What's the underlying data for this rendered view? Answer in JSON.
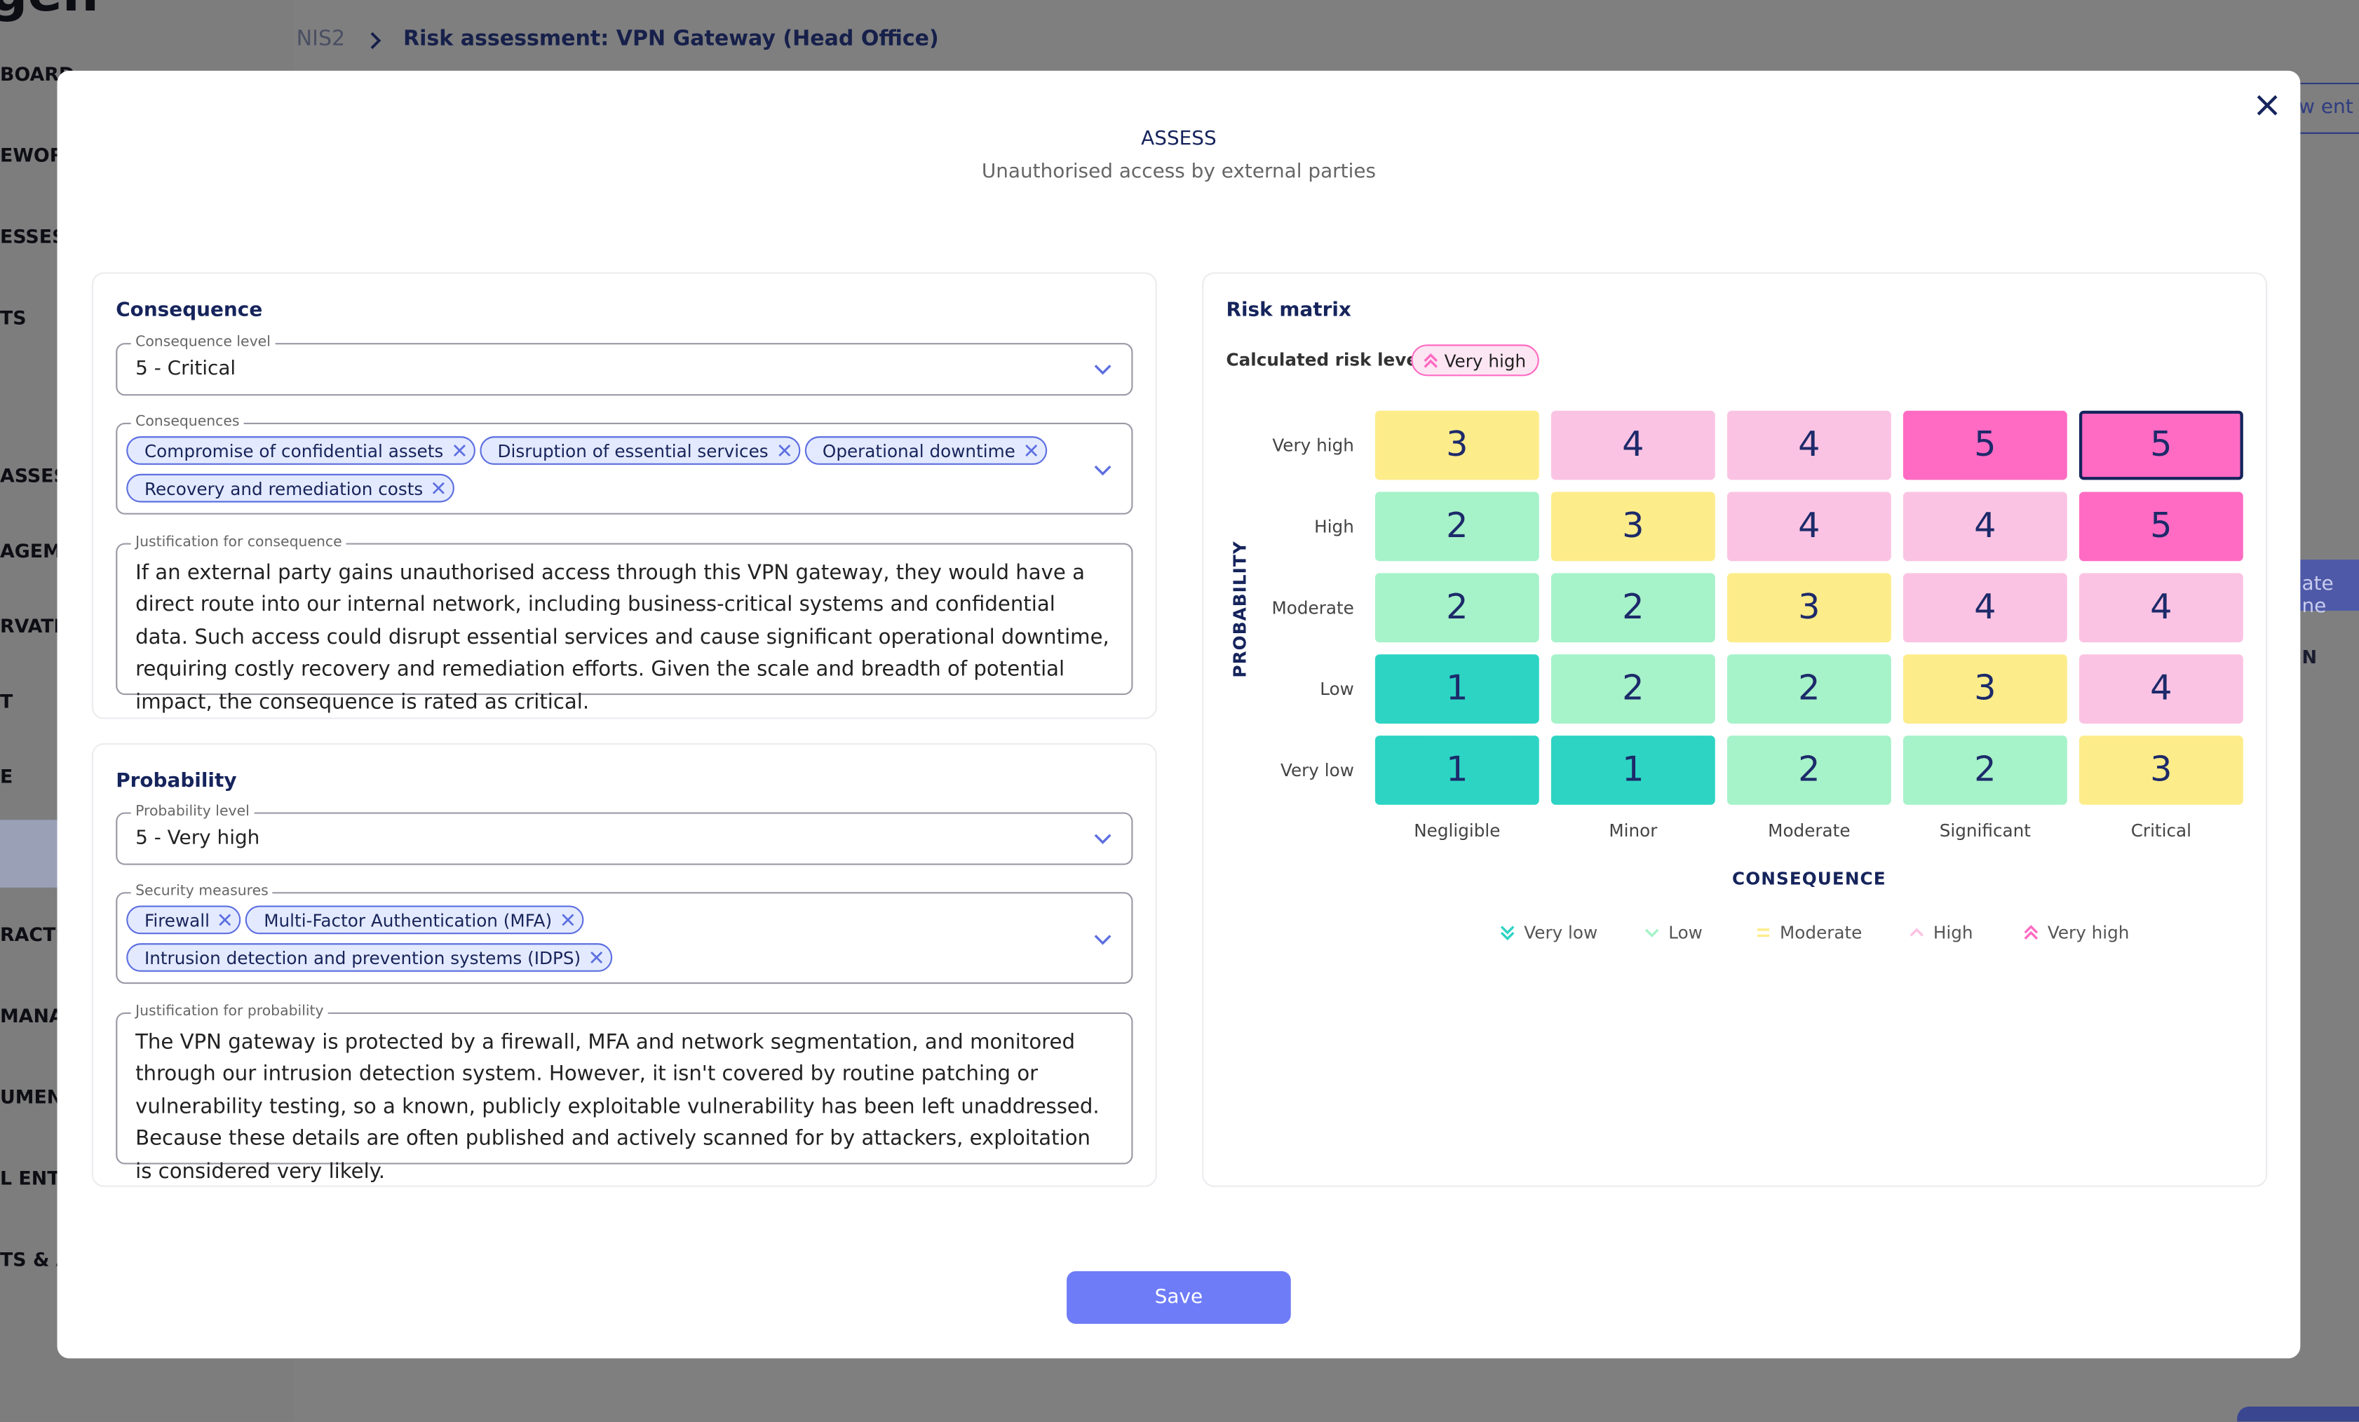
{
  "logo": "gen",
  "sidebar": {
    "items": [
      "BOARD",
      "EWOR",
      "ESSES",
      "TS",
      "ASSESS",
      "AGEME",
      "RVATI",
      "T",
      "E",
      "RACTS",
      "MANA",
      "UMENT",
      "L ENTI",
      "TS & A"
    ]
  },
  "breadcrumb": {
    "root": "NIS2",
    "current": "Risk assessment: VPN Gateway (Head Office)"
  },
  "background_fragments": {
    "top_button": "ew ent",
    "mid_button": "ate ne",
    "column": "N"
  },
  "modal": {
    "title": "ASSESS",
    "subtitle": "Unauthorised access by external parties",
    "consequence": {
      "heading": "Consequence",
      "level_label": "Consequence level",
      "level": "5 - Critical",
      "items_label": "Consequences",
      "items": [
        "Compromise of confidential assets",
        "Disruption of essential services",
        "Operational downtime",
        "Recovery and remediation costs"
      ],
      "justification_label": "Justification for consequence",
      "justification": "If an external party gains unauthorised access through this VPN gateway, they would have a direct route into our internal network, including business-critical systems and confidential data. Such access could disrupt essential services and cause significant operational downtime, requiring costly recovery and remediation efforts. Given the scale and breadth of potential impact, the consequence is rated as critical."
    },
    "probability": {
      "heading": "Probability",
      "level_label": "Probability level",
      "level": "5 - Very high",
      "items_label": "Security measures",
      "items": [
        "Firewall",
        "Multi-Factor Authentication (MFA)",
        "Intrusion detection and prevention systems (IDPS)"
      ],
      "justification_label": "Justification for probability",
      "justification": "The VPN gateway is protected by a firewall, MFA and network segmentation, and monitored through our intrusion detection system. However, it isn't covered by routine patching or vulnerability testing, so a known, publicly exploitable vulnerability has been left unaddressed. Because these details are often published and actively scanned for by attackers, exploitation is considered very likely."
    },
    "risk_matrix": {
      "heading": "Risk matrix",
      "calculated_label": "Calculated risk level:",
      "calculated": "Very high",
      "rows": [
        "Very high",
        "High",
        "Moderate",
        "Low",
        "Very low"
      ],
      "columns": [
        "Negligible",
        "Minor",
        "Moderate",
        "Significant",
        "Critical"
      ],
      "cells": [
        [
          3,
          4,
          4,
          5,
          5
        ],
        [
          2,
          3,
          4,
          4,
          5
        ],
        [
          2,
          2,
          3,
          4,
          4
        ],
        [
          1,
          2,
          2,
          3,
          4
        ],
        [
          1,
          1,
          2,
          2,
          3
        ]
      ],
      "selected": [
        0,
        4
      ],
      "x_axis_title": "CONSEQUENCE",
      "y_axis_title": "PROBABILITY",
      "levels": [
        {
          "name": "Very low",
          "color": "#2dd4c4"
        },
        {
          "name": "Low",
          "color": "#a6f2c9"
        },
        {
          "name": "Moderate",
          "color": "#fdec8a"
        },
        {
          "name": "High",
          "color": "#fbc3e3"
        },
        {
          "name": "Very high",
          "color": "#ff6bc3"
        }
      ]
    },
    "save": "Save"
  }
}
